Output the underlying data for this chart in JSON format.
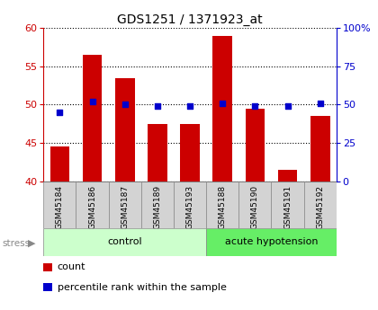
{
  "title": "GDS1251 / 1371923_at",
  "samples": [
    "GSM45184",
    "GSM45186",
    "GSM45187",
    "GSM45189",
    "GSM45193",
    "GSM45188",
    "GSM45190",
    "GSM45191",
    "GSM45192"
  ],
  "counts": [
    44.5,
    56.5,
    53.5,
    47.5,
    47.5,
    59.0,
    49.5,
    41.5,
    48.5
  ],
  "percentiles": [
    45,
    52,
    50,
    49,
    49,
    51,
    49,
    49,
    51
  ],
  "groups": [
    "control",
    "control",
    "control",
    "control",
    "control",
    "acute hypotension",
    "acute hypotension",
    "acute hypotension",
    "acute hypotension"
  ],
  "group_colors": {
    "control": "#ccffcc",
    "acute hypotension": "#66ee66"
  },
  "ylim": [
    40,
    60
  ],
  "yticks": [
    40,
    45,
    50,
    55,
    60
  ],
  "right_yticks": [
    0,
    25,
    50,
    75,
    100
  ],
  "right_yticklabels": [
    "0",
    "25",
    "50",
    "75",
    "100%"
  ],
  "bar_color": "#cc0000",
  "dot_color": "#0000cc",
  "bar_width": 0.6,
  "stress_label": "stress",
  "legend_count": "count",
  "legend_percentile": "percentile rank within the sample"
}
